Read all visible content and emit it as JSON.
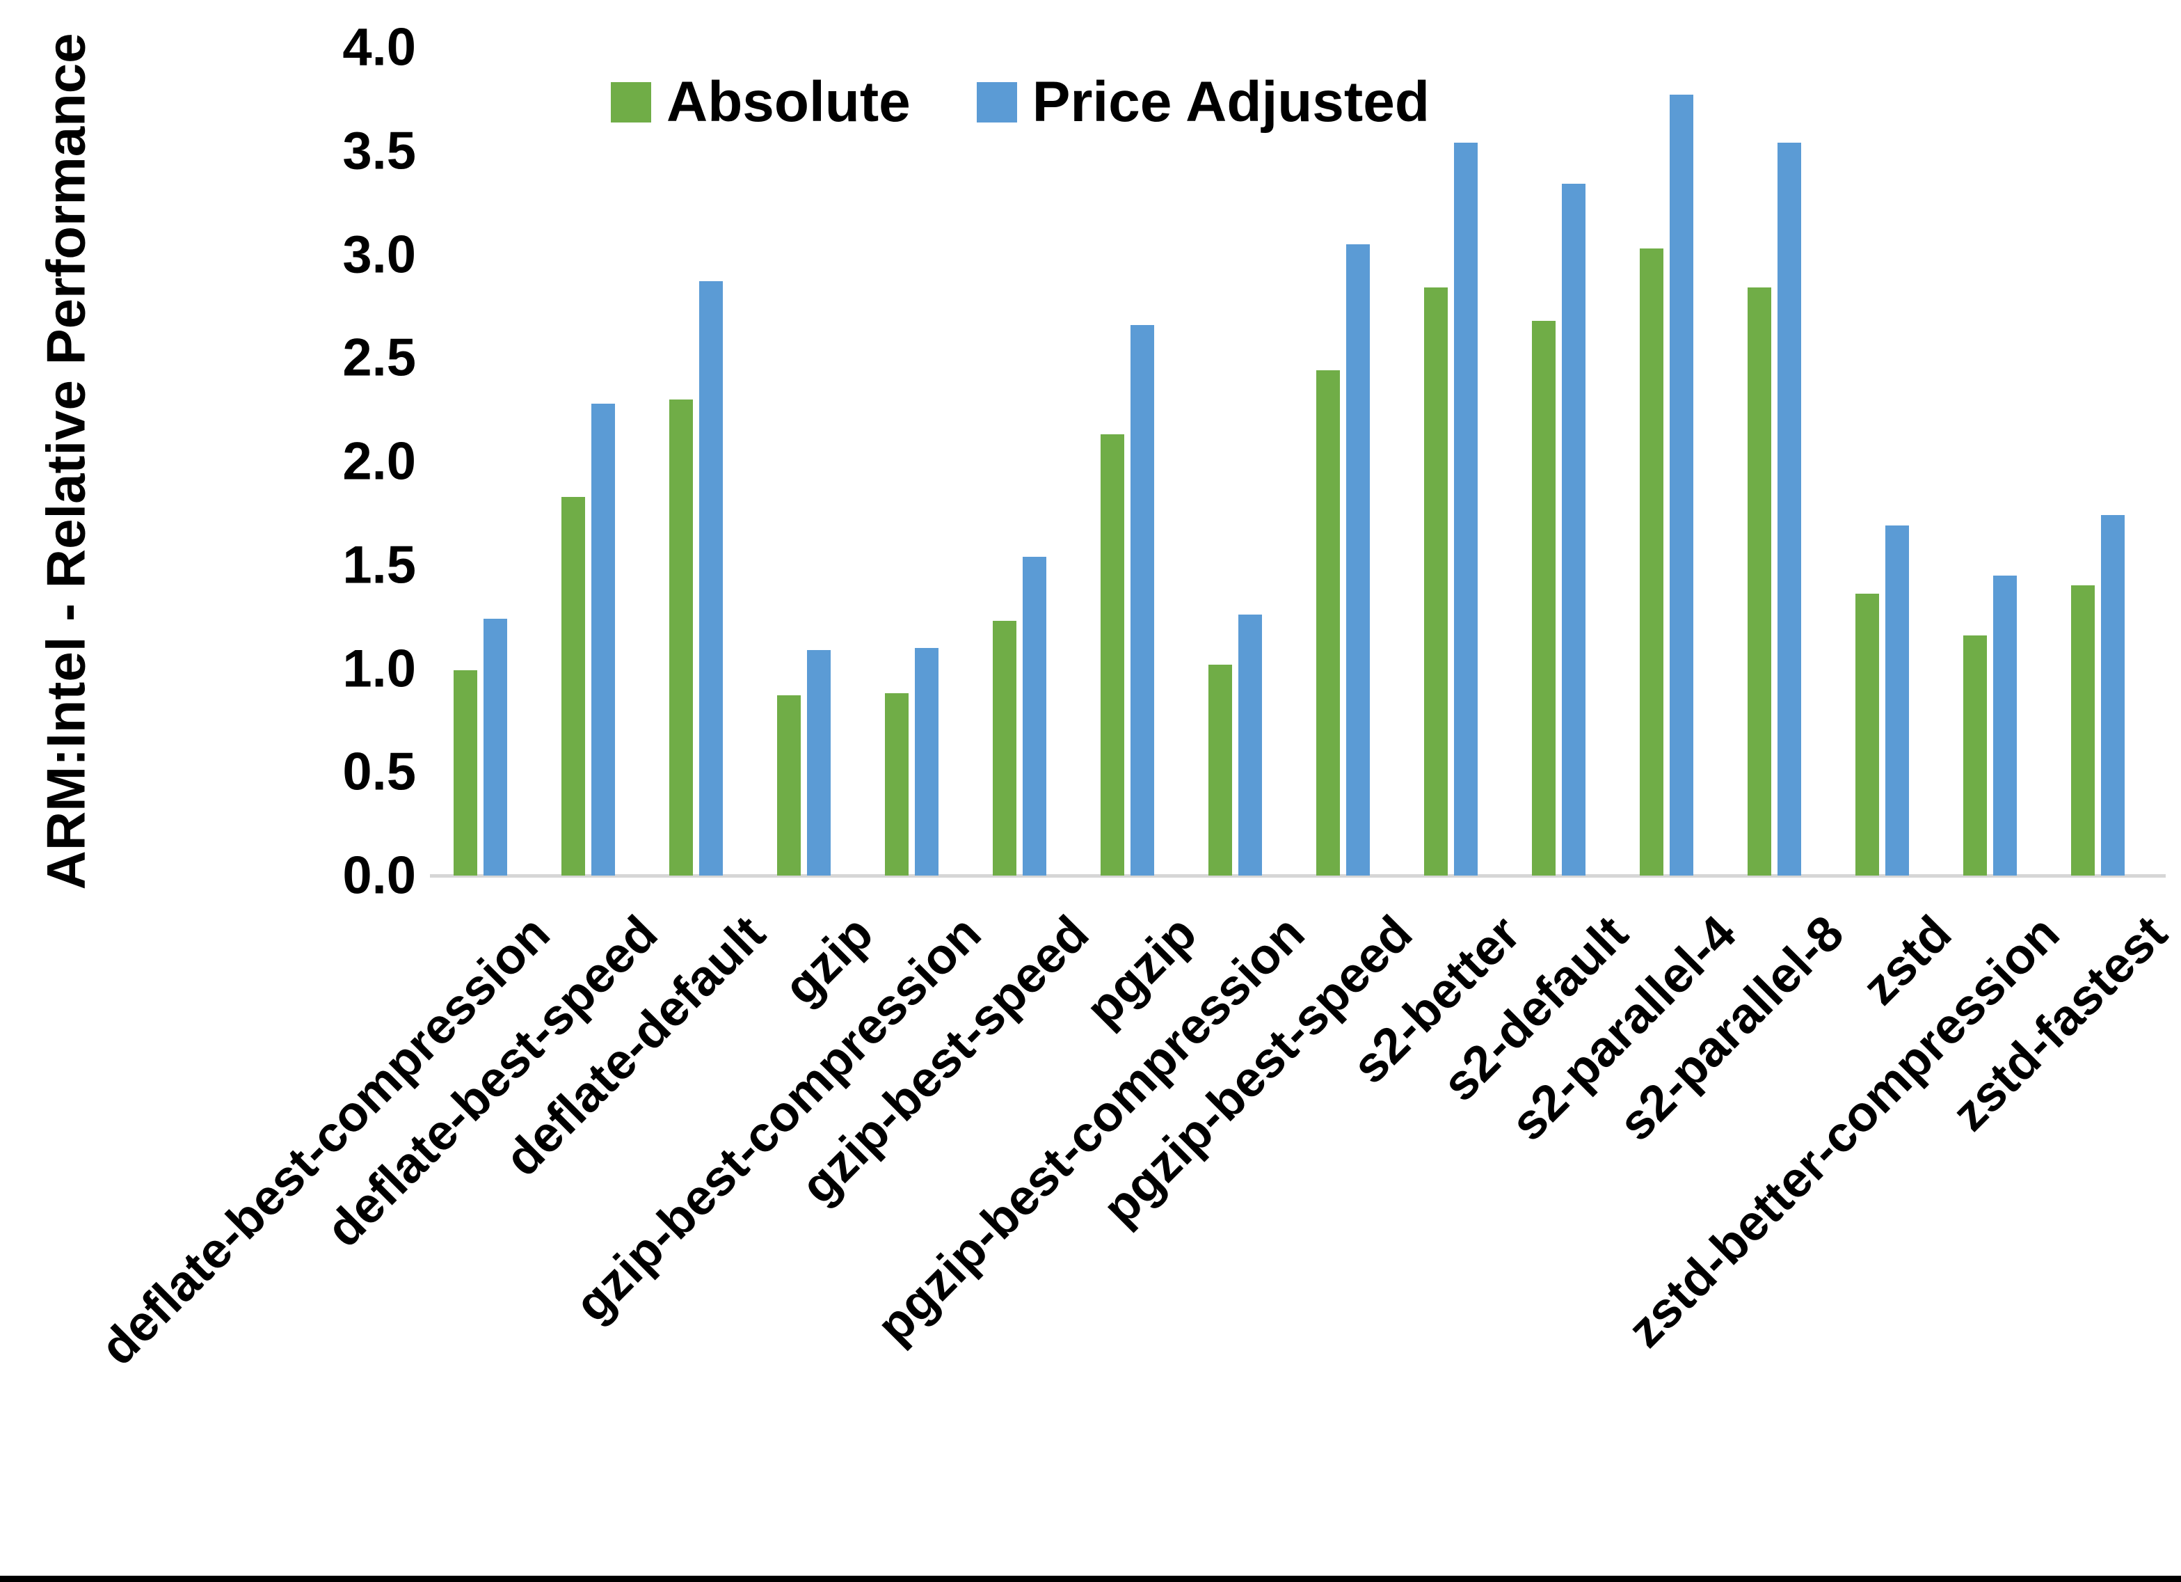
{
  "chart_data": {
    "type": "bar",
    "title": "",
    "xlabel": "",
    "ylabel": "ARM:Intel - Relative Performance",
    "ylim": [
      0.0,
      4.0
    ],
    "ytick_step": 0.5,
    "yticks": [
      "0.0",
      "0.5",
      "1.0",
      "1.5",
      "2.0",
      "2.5",
      "3.0",
      "3.5",
      "4.0"
    ],
    "grid": false,
    "legend_position": "top-center",
    "legend_entries": [
      "Absolute",
      "Price Adjusted"
    ],
    "categories": [
      "deflate-best-compression",
      "deflate-best-speed",
      "deflate-default",
      "gzip",
      "gzip-best-compression",
      "gzip-best-speed",
      "pgzip",
      "pgzip-best-compression",
      "pgzip-best-speed",
      "s2-better",
      "s2-default",
      "s2-parallel-4",
      "s2-parallel-8",
      "zstd",
      "zstd-better-compression",
      "zstd-fastest"
    ],
    "series": [
      {
        "name": "Absolute",
        "color": "#70AD47",
        "values": [
          0.99,
          1.83,
          2.3,
          0.87,
          0.88,
          1.23,
          2.13,
          1.02,
          2.44,
          2.84,
          2.68,
          3.03,
          2.84,
          1.36,
          1.16,
          1.4
        ]
      },
      {
        "name": "Price Adjusted",
        "color": "#5B9BD5",
        "values": [
          1.24,
          2.28,
          2.87,
          1.09,
          1.1,
          1.54,
          2.66,
          1.26,
          3.05,
          3.54,
          3.34,
          3.77,
          3.54,
          1.69,
          1.45,
          1.74
        ]
      }
    ]
  },
  "colors": {
    "background": "#FFFFFF",
    "text": "#000000",
    "baseline": "#D6D6D6",
    "absolute_green": "#70AD47",
    "price_adjusted_blue": "#5B9BD5",
    "bottom_border": "#000000"
  }
}
